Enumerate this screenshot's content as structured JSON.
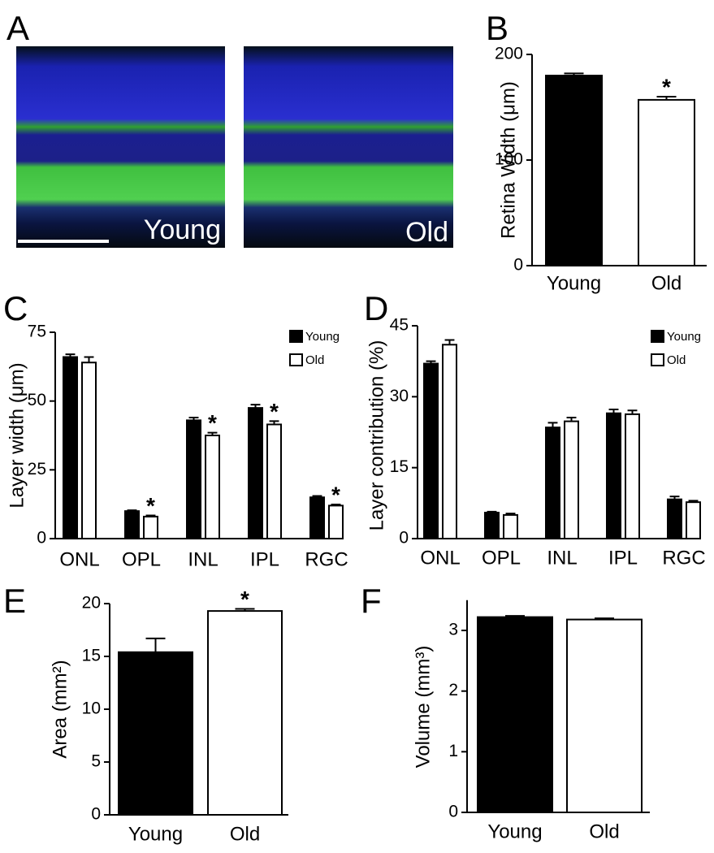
{
  "image_panel": {
    "letter": "A",
    "labels": [
      "Young",
      "Old"
    ]
  },
  "chart_data": [
    {
      "type": "bar",
      "panel": "B",
      "ylabel": "Retina Width (μm)",
      "categories": [
        "Young",
        "Old"
      ],
      "series": [
        {
          "colors": [
            "#000000",
            "#ffffff"
          ],
          "values": [
            180,
            157
          ],
          "errors": [
            2,
            3
          ],
          "annotations": [
            null,
            "*"
          ]
        }
      ],
      "ylim": [
        0,
        200
      ],
      "yticks": [
        0,
        100,
        200
      ]
    },
    {
      "type": "bar",
      "panel": "C",
      "ylabel": "Layer width  (μm)",
      "categories": [
        "ONL",
        "OPL",
        "INL",
        "IPL",
        "RGC"
      ],
      "series": [
        {
          "name": "Young",
          "color": "#000000",
          "values": [
            66,
            10,
            43,
            47.5,
            15
          ],
          "errors": [
            1,
            0.3,
            1,
            1.2,
            0.5
          ],
          "annotations": [
            null,
            null,
            null,
            null,
            null
          ]
        },
        {
          "name": "Old",
          "color": "#ffffff",
          "values": [
            64,
            8,
            37.5,
            41.5,
            12
          ],
          "errors": [
            2,
            0.4,
            1,
            1.2,
            0.4
          ],
          "annotations": [
            null,
            "*",
            "*",
            "*",
            "*"
          ]
        }
      ],
      "ylim": [
        0,
        75
      ],
      "yticks": [
        0,
        25,
        50,
        75
      ],
      "legend": "top-right"
    },
    {
      "type": "bar",
      "panel": "D",
      "ylabel": "Layer contribution (%)",
      "categories": [
        "ONL",
        "OPL",
        "INL",
        "IPL",
        "RGC"
      ],
      "series": [
        {
          "name": "Young",
          "color": "#000000",
          "values": [
            37,
            5.5,
            23.5,
            26.5,
            8.3
          ],
          "errors": [
            0.5,
            0.2,
            1,
            0.8,
            0.6
          ]
        },
        {
          "name": "Old",
          "color": "#ffffff",
          "values": [
            41,
            5,
            24.8,
            26.3,
            7.7
          ],
          "errors": [
            1,
            0.3,
            0.8,
            0.8,
            0.3
          ]
        }
      ],
      "ylim": [
        0,
        45
      ],
      "yticks": [
        0,
        15,
        30,
        45
      ],
      "legend": "top-right"
    },
    {
      "type": "bar",
      "panel": "E",
      "ylabel": "Area (mm²)",
      "categories": [
        "Young",
        "Old"
      ],
      "series": [
        {
          "colors": [
            "#000000",
            "#ffffff"
          ],
          "values": [
            15.4,
            19.3
          ],
          "errors": [
            1.3,
            0.2
          ],
          "annotations": [
            null,
            "*"
          ]
        }
      ],
      "ylim": [
        0,
        20
      ],
      "yticks": [
        0,
        5,
        10,
        15,
        20
      ]
    },
    {
      "type": "bar",
      "panel": "F",
      "ylabel": "Volume (mm³)",
      "categories": [
        "Young",
        "Old"
      ],
      "series": [
        {
          "colors": [
            "#000000",
            "#ffffff"
          ],
          "values": [
            3.22,
            3.18
          ],
          "errors": [
            0.02,
            0.02
          ]
        }
      ],
      "ylim": [
        0,
        3.5
      ],
      "yticks": [
        0,
        1,
        2,
        3
      ]
    }
  ]
}
